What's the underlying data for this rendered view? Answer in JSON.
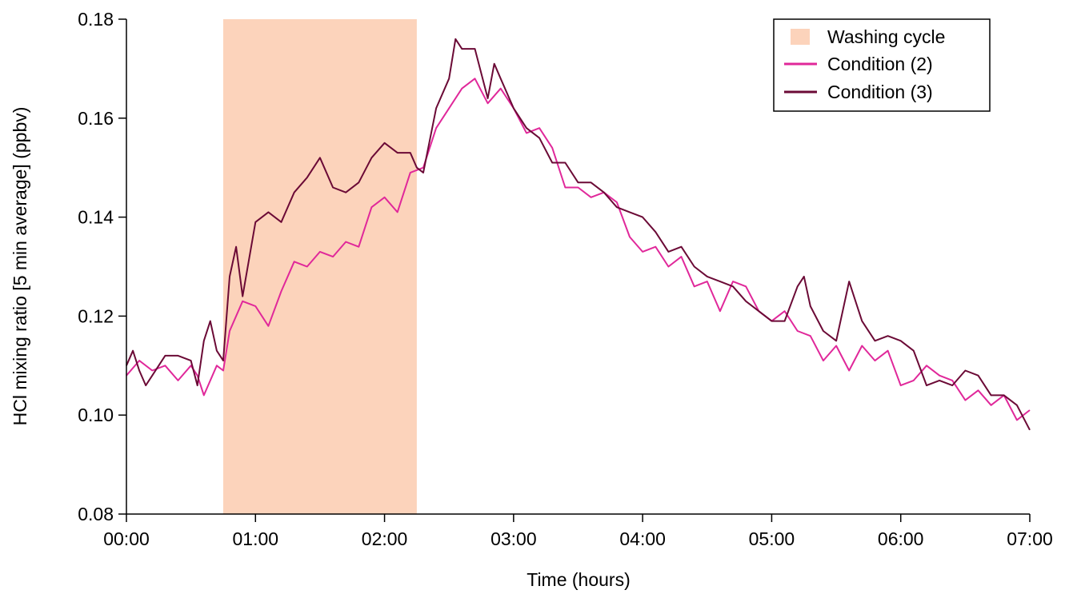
{
  "chart_data": {
    "type": "line",
    "title": "",
    "xlabel": "Time (hours)",
    "ylabel": "HCl mixing ratio [5 min average] (ppbv)",
    "xlim": [
      0,
      7
    ],
    "ylim": [
      0.08,
      0.18
    ],
    "x_ticks": [
      {
        "value": 0,
        "label": "00:00"
      },
      {
        "value": 1,
        "label": "01:00"
      },
      {
        "value": 2,
        "label": "02:00"
      },
      {
        "value": 3,
        "label": "03:00"
      },
      {
        "value": 4,
        "label": "04:00"
      },
      {
        "value": 5,
        "label": "05:00"
      },
      {
        "value": 6,
        "label": "06:00"
      },
      {
        "value": 7,
        "label": "07:00"
      }
    ],
    "y_ticks": [
      {
        "value": 0.08,
        "label": "0.08"
      },
      {
        "value": 0.1,
        "label": "0.10"
      },
      {
        "value": 0.12,
        "label": "0.12"
      },
      {
        "value": 0.14,
        "label": "0.14"
      },
      {
        "value": 0.16,
        "label": "0.16"
      },
      {
        "value": 0.18,
        "label": "0.18"
      }
    ],
    "shaded_region": {
      "name": "Washing cycle",
      "x_start": 0.75,
      "x_end": 2.25,
      "color": "#fcd3bb"
    },
    "legend": {
      "placement": "top-right",
      "entries": [
        {
          "label": "Washing cycle",
          "kind": "patch",
          "color": "#fcd3bb"
        },
        {
          "label": "Condition (2)",
          "kind": "line",
          "color": "#e0289a"
        },
        {
          "label": "Condition (3)",
          "kind": "line",
          "color": "#6b0a36"
        }
      ]
    },
    "grid": false,
    "series": [
      {
        "name": "Condition (2)",
        "color": "#e0289a",
        "x": [
          0.0,
          0.1,
          0.2,
          0.3,
          0.4,
          0.5,
          0.55,
          0.6,
          0.7,
          0.75,
          0.8,
          0.9,
          1.0,
          1.1,
          1.2,
          1.3,
          1.4,
          1.5,
          1.6,
          1.7,
          1.8,
          1.9,
          2.0,
          2.1,
          2.2,
          2.3,
          2.4,
          2.5,
          2.6,
          2.7,
          2.8,
          2.9,
          3.0,
          3.1,
          3.2,
          3.3,
          3.4,
          3.5,
          3.6,
          3.7,
          3.8,
          3.9,
          4.0,
          4.1,
          4.2,
          4.3,
          4.4,
          4.5,
          4.6,
          4.7,
          4.8,
          4.9,
          5.0,
          5.1,
          5.2,
          5.3,
          5.4,
          5.5,
          5.6,
          5.7,
          5.8,
          5.9,
          6.0,
          6.1,
          6.2,
          6.3,
          6.4,
          6.5,
          6.6,
          6.7,
          6.8,
          6.9,
          7.0
        ],
        "values": [
          0.108,
          0.111,
          0.109,
          0.11,
          0.107,
          0.11,
          0.108,
          0.104,
          0.11,
          0.109,
          0.117,
          0.123,
          0.122,
          0.118,
          0.125,
          0.131,
          0.13,
          0.133,
          0.132,
          0.135,
          0.134,
          0.142,
          0.144,
          0.141,
          0.149,
          0.15,
          0.158,
          0.162,
          0.166,
          0.168,
          0.163,
          0.166,
          0.162,
          0.157,
          0.158,
          0.154,
          0.146,
          0.146,
          0.144,
          0.145,
          0.143,
          0.136,
          0.133,
          0.134,
          0.13,
          0.132,
          0.126,
          0.127,
          0.121,
          0.127,
          0.126,
          0.121,
          0.119,
          0.121,
          0.117,
          0.116,
          0.111,
          0.114,
          0.109,
          0.114,
          0.111,
          0.113,
          0.106,
          0.107,
          0.11,
          0.108,
          0.107,
          0.103,
          0.105,
          0.102,
          0.104,
          0.099,
          0.101
        ]
      },
      {
        "name": "Condition (3)",
        "color": "#6b0a36",
        "x": [
          0.0,
          0.05,
          0.1,
          0.15,
          0.2,
          0.3,
          0.4,
          0.5,
          0.55,
          0.6,
          0.65,
          0.7,
          0.75,
          0.8,
          0.85,
          0.9,
          1.0,
          1.1,
          1.2,
          1.3,
          1.4,
          1.5,
          1.6,
          1.7,
          1.8,
          1.9,
          2.0,
          2.1,
          2.2,
          2.25,
          2.3,
          2.4,
          2.5,
          2.55,
          2.6,
          2.7,
          2.8,
          2.85,
          2.9,
          3.0,
          3.1,
          3.2,
          3.3,
          3.4,
          3.5,
          3.6,
          3.7,
          3.8,
          3.9,
          4.0,
          4.1,
          4.2,
          4.3,
          4.4,
          4.5,
          4.6,
          4.7,
          4.8,
          4.9,
          5.0,
          5.1,
          5.2,
          5.25,
          5.3,
          5.4,
          5.5,
          5.6,
          5.7,
          5.8,
          5.9,
          6.0,
          6.1,
          6.2,
          6.3,
          6.4,
          6.5,
          6.6,
          6.7,
          6.8,
          6.9,
          7.0
        ],
        "values": [
          0.11,
          0.113,
          0.109,
          0.106,
          0.108,
          0.112,
          0.112,
          0.111,
          0.106,
          0.115,
          0.119,
          0.113,
          0.111,
          0.128,
          0.134,
          0.124,
          0.139,
          0.141,
          0.139,
          0.145,
          0.148,
          0.152,
          0.146,
          0.145,
          0.147,
          0.152,
          0.155,
          0.153,
          0.153,
          0.15,
          0.149,
          0.162,
          0.168,
          0.176,
          0.174,
          0.174,
          0.164,
          0.171,
          0.168,
          0.162,
          0.158,
          0.156,
          0.151,
          0.151,
          0.147,
          0.147,
          0.145,
          0.142,
          0.141,
          0.14,
          0.137,
          0.133,
          0.134,
          0.13,
          0.128,
          0.127,
          0.126,
          0.123,
          0.121,
          0.119,
          0.119,
          0.126,
          0.128,
          0.122,
          0.117,
          0.115,
          0.127,
          0.119,
          0.115,
          0.116,
          0.115,
          0.113,
          0.106,
          0.107,
          0.106,
          0.109,
          0.108,
          0.104,
          0.104,
          0.102,
          0.097
        ]
      }
    ]
  }
}
